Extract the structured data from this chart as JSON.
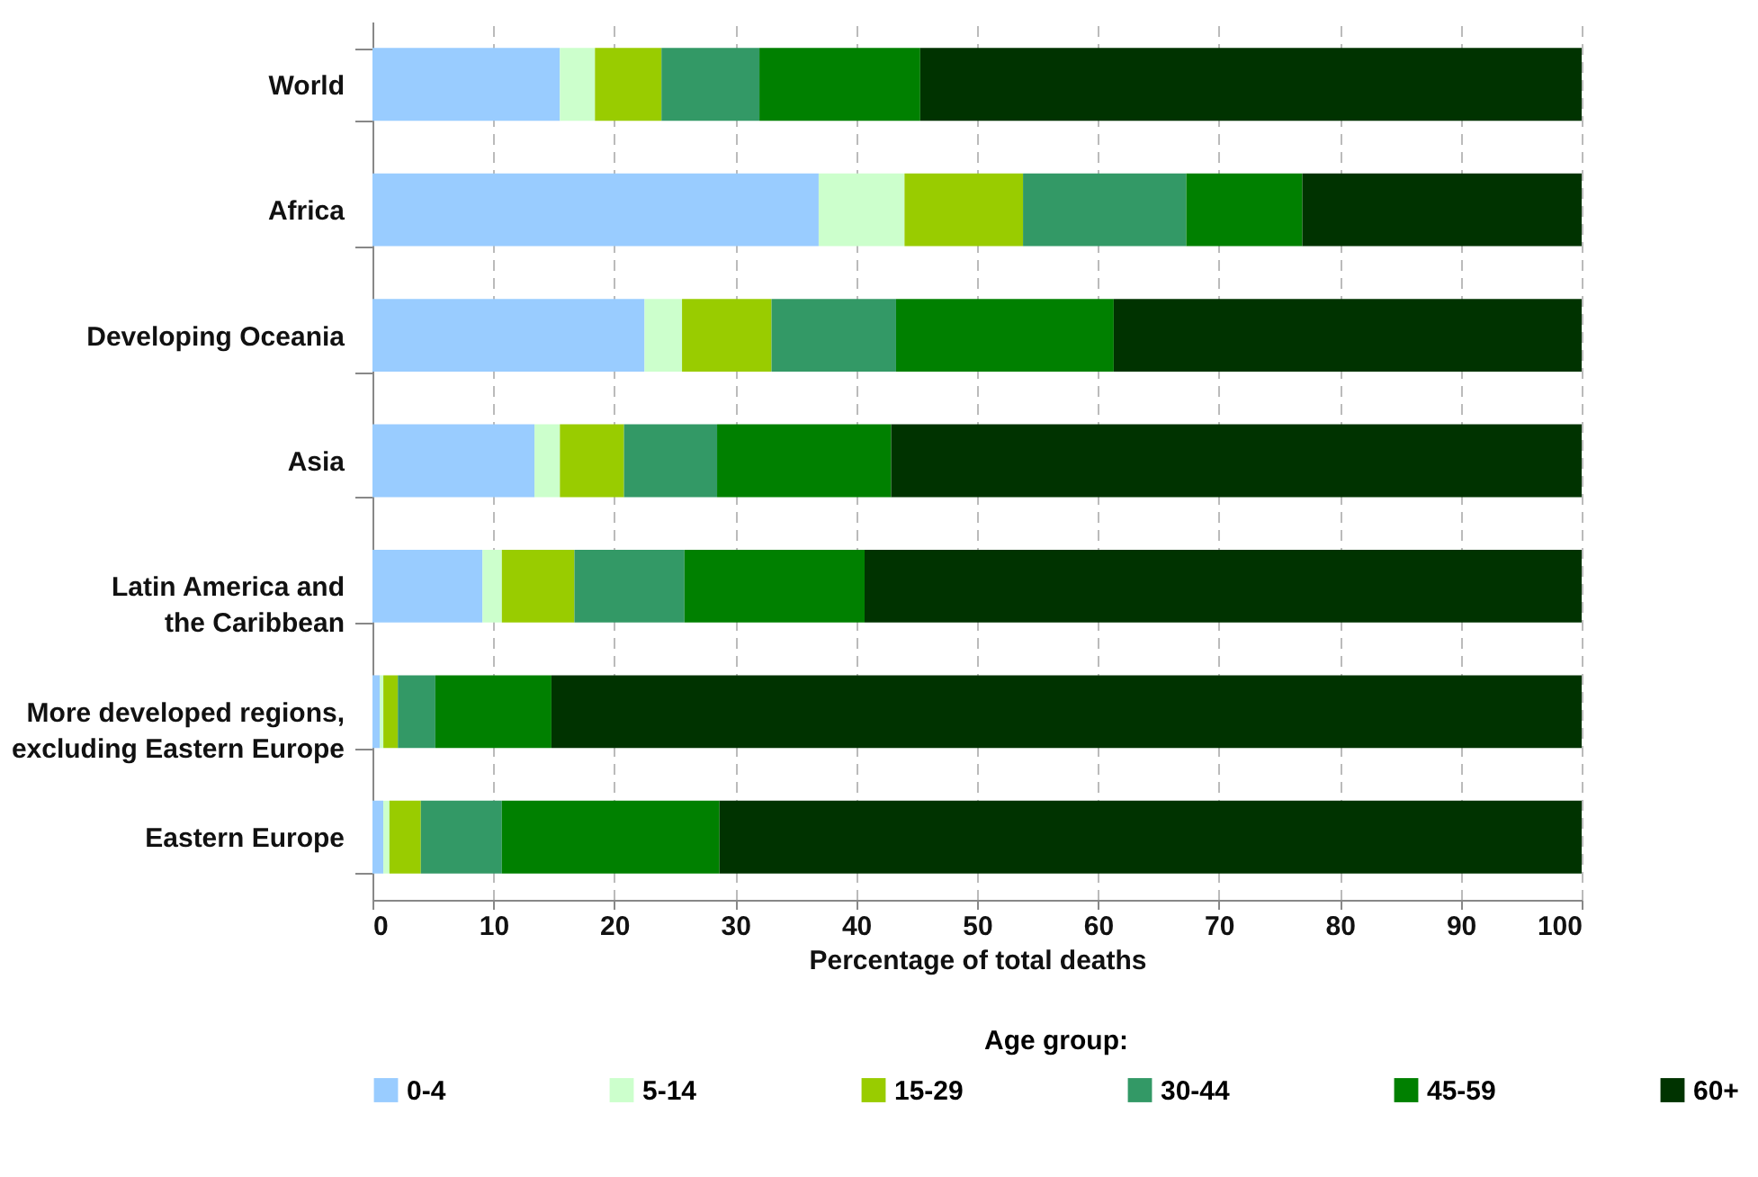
{
  "chart_data": {
    "type": "bar",
    "orientation": "horizontal",
    "stacked": true,
    "categories": [
      "World",
      "Africa",
      "Developing Oceania",
      "Asia",
      "Latin America and\nthe Caribbean",
      "More developed regions,\nexcluding Eastern Europe",
      "Eastern Europe"
    ],
    "series": [
      {
        "name": "0-4",
        "color": "#99ccff",
        "values": [
          15.5,
          36.9,
          22.5,
          13.4,
          9.1,
          0.6,
          0.9
        ]
      },
      {
        "name": "5-14",
        "color": "#ccffcc",
        "values": [
          2.9,
          7.1,
          3.1,
          2.1,
          1.6,
          0.3,
          0.5
        ]
      },
      {
        "name": "15-29",
        "color": "#99cc00",
        "values": [
          5.5,
          9.8,
          7.4,
          5.3,
          6.0,
          1.2,
          2.6
        ]
      },
      {
        "name": "30-44",
        "color": "#339966",
        "values": [
          8.1,
          13.5,
          10.3,
          7.7,
          9.1,
          3.1,
          6.7
        ]
      },
      {
        "name": "45-59",
        "color": "#008000",
        "values": [
          13.3,
          9.6,
          18.0,
          14.4,
          14.9,
          9.6,
          18.0
        ]
      },
      {
        "name": "60+",
        "color": "#003300",
        "values": [
          54.7,
          23.1,
          38.7,
          57.1,
          59.3,
          85.2,
          71.3
        ]
      }
    ],
    "xlabel": "Percentage of total deaths",
    "legend_title": "Age group:",
    "legend": "bottom",
    "grid": "x",
    "xlim": [
      0,
      100
    ],
    "xticks": [
      0,
      10,
      20,
      30,
      40,
      50,
      60,
      70,
      80,
      90,
      100
    ]
  }
}
